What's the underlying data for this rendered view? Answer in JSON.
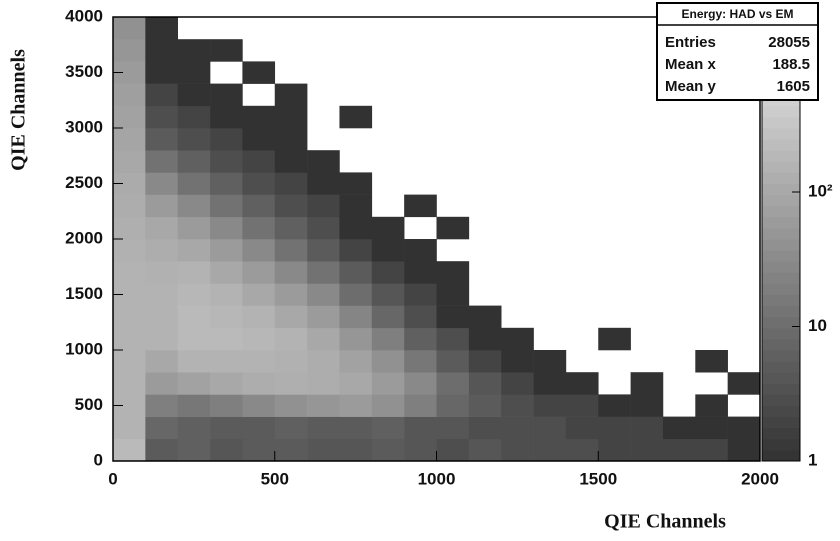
{
  "chart_data": {
    "type": "heatmap",
    "x_label": "QIE Channels",
    "y_label": "QIE Channels",
    "xbins": [
      0,
      100,
      200,
      300,
      400,
      500,
      600,
      700,
      800,
      900,
      1000,
      1100,
      1200,
      1300,
      1400,
      1500,
      1600,
      1700,
      1800,
      1900,
      2000
    ],
    "ybins": [
      0,
      200,
      400,
      600,
      800,
      1000,
      1200,
      1400,
      1600,
      1800,
      2000,
      2200,
      2400,
      2600,
      2800,
      3000,
      3200,
      3400,
      3600,
      3800,
      4000
    ],
    "values": [
      [
        200,
        5,
        6,
        4,
        5,
        5,
        4,
        4,
        5,
        4,
        3,
        4,
        3,
        3,
        3,
        2,
        2,
        2,
        2,
        1
      ],
      [
        150,
        8,
        6,
        5,
        5,
        6,
        5,
        5,
        6,
        4,
        4,
        3,
        3,
        3,
        2,
        2,
        2,
        1,
        1,
        1
      ],
      [
        150,
        20,
        15,
        20,
        30,
        40,
        50,
        60,
        40,
        20,
        8,
        5,
        3,
        2,
        2,
        1,
        1,
        0,
        1,
        0
      ],
      [
        150,
        60,
        80,
        100,
        120,
        130,
        120,
        100,
        60,
        30,
        10,
        4,
        2,
        1,
        1,
        0,
        1,
        0,
        0,
        1
      ],
      [
        150,
        100,
        150,
        150,
        150,
        140,
        120,
        80,
        40,
        15,
        5,
        2,
        1,
        1,
        0,
        0,
        0,
        0,
        1,
        0
      ],
      [
        150,
        150,
        200,
        200,
        180,
        150,
        100,
        50,
        20,
        6,
        3,
        1,
        1,
        0,
        0,
        1,
        0,
        0,
        0,
        0
      ],
      [
        150,
        150,
        200,
        180,
        150,
        100,
        60,
        25,
        8,
        3,
        1,
        1,
        0,
        0,
        0,
        0,
        0,
        0,
        0,
        0
      ],
      [
        150,
        150,
        180,
        150,
        100,
        60,
        30,
        10,
        4,
        2,
        1,
        0,
        0,
        0,
        0,
        0,
        0,
        0,
        0,
        0
      ],
      [
        150,
        140,
        150,
        100,
        60,
        30,
        12,
        5,
        2,
        1,
        1,
        0,
        0,
        0,
        0,
        0,
        0,
        0,
        0,
        0
      ],
      [
        140,
        120,
        100,
        60,
        30,
        12,
        5,
        2,
        1,
        1,
        0,
        0,
        0,
        0,
        0,
        0,
        0,
        0,
        0,
        0
      ],
      [
        130,
        100,
        60,
        30,
        12,
        6,
        3,
        1,
        1,
        0,
        1,
        0,
        0,
        0,
        0,
        0,
        0,
        0,
        0,
        0
      ],
      [
        120,
        60,
        30,
        12,
        6,
        3,
        2,
        1,
        0,
        1,
        0,
        0,
        0,
        0,
        0,
        0,
        0,
        0,
        0,
        0
      ],
      [
        110,
        30,
        12,
        6,
        3,
        2,
        1,
        1,
        0,
        0,
        0,
        0,
        0,
        0,
        0,
        0,
        0,
        0,
        0,
        0
      ],
      [
        100,
        12,
        6,
        3,
        2,
        1,
        1,
        0,
        0,
        0,
        0,
        0,
        0,
        0,
        0,
        0,
        0,
        0,
        0,
        0
      ],
      [
        90,
        5,
        3,
        2,
        1,
        1,
        0,
        0,
        0,
        0,
        0,
        0,
        0,
        0,
        0,
        0,
        0,
        0,
        0,
        0
      ],
      [
        80,
        3,
        2,
        1,
        1,
        1,
        0,
        1,
        0,
        0,
        0,
        0,
        0,
        0,
        0,
        0,
        0,
        0,
        0,
        0
      ],
      [
        70,
        2,
        1,
        1,
        0,
        1,
        0,
        0,
        0,
        0,
        0,
        0,
        0,
        0,
        0,
        0,
        0,
        0,
        0,
        0
      ],
      [
        60,
        1,
        1,
        0,
        1,
        0,
        0,
        0,
        0,
        0,
        0,
        0,
        0,
        0,
        0,
        0,
        0,
        0,
        0,
        0
      ],
      [
        50,
        1,
        1,
        1,
        0,
        0,
        0,
        0,
        0,
        0,
        0,
        0,
        0,
        0,
        0,
        0,
        0,
        0,
        0,
        0
      ],
      [
        40,
        1,
        0,
        0,
        0,
        0,
        0,
        0,
        0,
        0,
        0,
        0,
        0,
        0,
        0,
        0,
        0,
        0,
        0,
        0
      ]
    ],
    "xlim": [
      0,
      2000
    ],
    "xticks": [
      0,
      500,
      1000,
      1500,
      2000
    ],
    "ylim": [
      0,
      4000
    ],
    "yticks": [
      0,
      500,
      1000,
      1500,
      2000,
      2500,
      3000,
      3500,
      4000
    ],
    "zlim": [
      1,
      2000
    ],
    "zticks": [
      1,
      10,
      {
        "value": 100,
        "label": "10²"
      }
    ],
    "zlog": true,
    "stats": {
      "title": "Energy: HAD vs EM",
      "rows": [
        {
          "label": "Entries",
          "value": 28055
        },
        {
          "label": "Mean x",
          "value": 188.5
        },
        {
          "label": "Mean y",
          "value": 1605
        }
      ]
    }
  }
}
